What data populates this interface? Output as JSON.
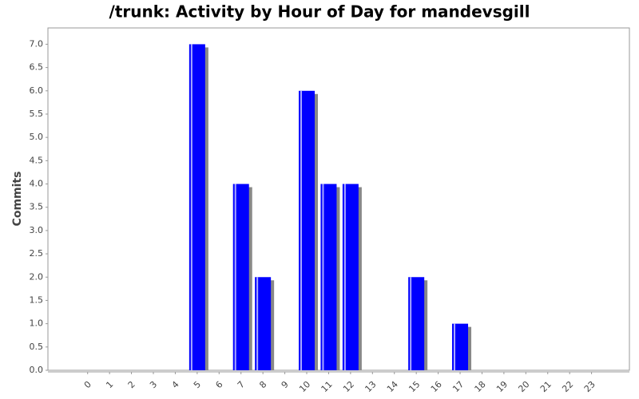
{
  "chart_data": {
    "type": "bar",
    "title": "/trunk: Activity by Hour of Day for mandevsgill",
    "y_label": "Commits",
    "categories": [
      "0",
      "1",
      "2",
      "3",
      "4",
      "5",
      "6",
      "7",
      "8",
      "9",
      "10",
      "11",
      "12",
      "13",
      "14",
      "15",
      "16",
      "17",
      "18",
      "19",
      "20",
      "21",
      "22",
      "23"
    ],
    "values": [
      0,
      0,
      0,
      0,
      0,
      7,
      0,
      4,
      2,
      0,
      6,
      4,
      4,
      0,
      0,
      2,
      0,
      1,
      0,
      0,
      0,
      0,
      0,
      0
    ],
    "color": "#0000ff",
    "ylim": [
      0,
      7.35
    ],
    "yticks": [
      {
        "value": 0,
        "label": "0.0"
      },
      {
        "value": 0.5,
        "label": "0.5"
      },
      {
        "value": 1,
        "label": "1.0"
      },
      {
        "value": 1.5,
        "label": "1.5"
      },
      {
        "value": 2,
        "label": "2.0"
      },
      {
        "value": 2.5,
        "label": "2.5"
      },
      {
        "value": 3,
        "label": "3.0"
      },
      {
        "value": 3.5,
        "label": "3.5"
      },
      {
        "value": 4,
        "label": "4.0"
      },
      {
        "value": 4.5,
        "label": "4.5"
      },
      {
        "value": 5,
        "label": "5.0"
      },
      {
        "value": 5.5,
        "label": "5.5"
      },
      {
        "value": 6,
        "label": "6.0"
      },
      {
        "value": 6.5,
        "label": "6.5"
      },
      {
        "value": 7,
        "label": "7.0"
      }
    ]
  }
}
